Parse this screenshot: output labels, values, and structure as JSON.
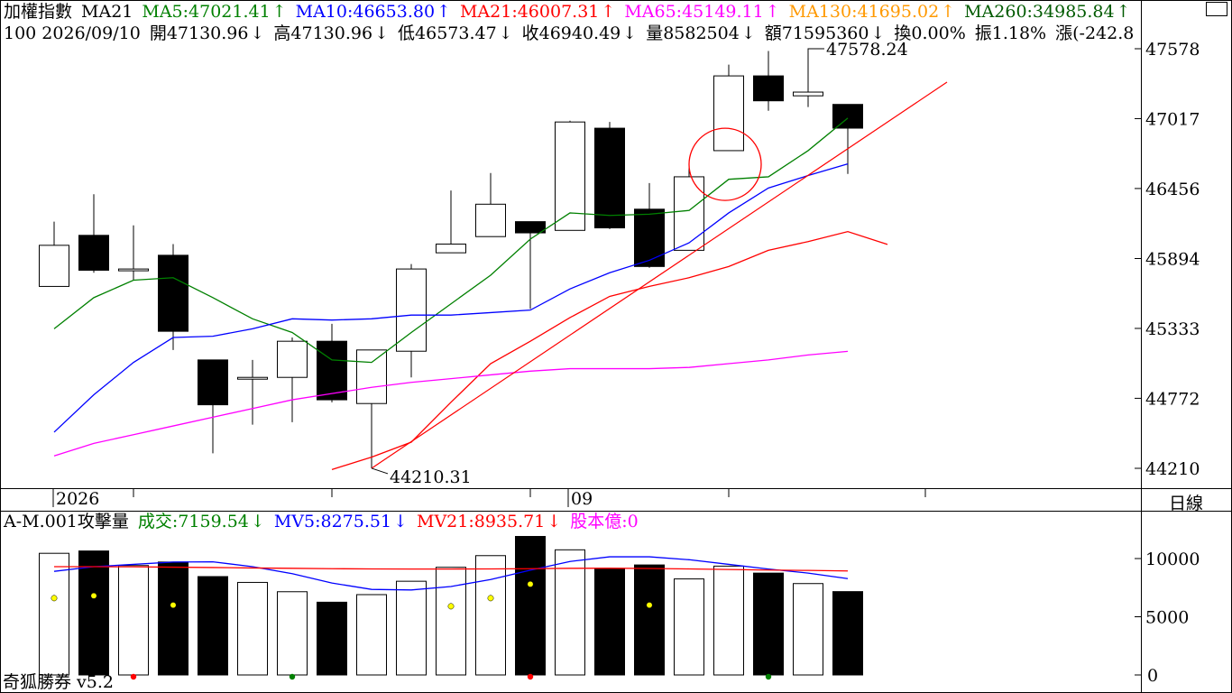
{
  "header1": {
    "title": "加權指數",
    "ma21_label": "MA21",
    "ma5": {
      "text": "MA5:47021.41",
      "arrow": "↑",
      "color": "#008000"
    },
    "ma10": {
      "text": "MA10:46653.80",
      "arrow": "↑",
      "color": "#0000ff"
    },
    "ma21": {
      "text": "MA21:46007.31",
      "arrow": "↑",
      "color": "#ff0000"
    },
    "ma65": {
      "text": "MA65:45149.11",
      "arrow": "↑",
      "color": "#ff00ff"
    },
    "ma130": {
      "text": "MA130:41695.02",
      "arrow": "↑",
      "color": "#ff9900"
    },
    "ma260": {
      "text": "MA260:34985.84",
      "arrow": "↑",
      "color": "#005a00"
    }
  },
  "header2": {
    "code_date": "100 2026/09/10",
    "open": "開47130.96",
    "open_arrow": "↓",
    "high": "高47130.96",
    "high_arrow": "↓",
    "low": "低46573.47",
    "low_arrow": "↓",
    "close": "收46940.49",
    "close_arrow": "↓",
    "volume": "量8582504",
    "volume_arrow": "↓",
    "amount": "額71595360",
    "amount_arrow": "↓",
    "turnover": "換0.00%",
    "amplitude": "振1.18%",
    "change": "漲(-242.8"
  },
  "volume_header": {
    "title": "A-M.001攻擊量",
    "trade": {
      "text": "成交:7159.54",
      "arrow": "↓",
      "color": "#008000"
    },
    "mv5": {
      "text": "MV5:8275.51",
      "arrow": "↓",
      "color": "#0000ff"
    },
    "mv21": {
      "text": "MV21:8935.71",
      "arrow": "↓",
      "color": "#ff0000"
    },
    "capital": {
      "text": "股本億:0",
      "color": "#ff00ff"
    }
  },
  "brand": "奇狐勝券 v5.2",
  "period_label": "日線",
  "chart_data": {
    "type": "candlestick",
    "price_axis": {
      "ticks": [
        47578,
        47017,
        46456,
        45894,
        45333,
        44772,
        44210
      ],
      "range": [
        44005,
        47960
      ]
    },
    "volume_axis": {
      "ticks": [
        10000,
        5000,
        0
      ],
      "range": [
        0,
        11800
      ]
    },
    "x_labels": [
      {
        "index": 0,
        "text": "2026"
      },
      {
        "index": 13,
        "text": "09"
      }
    ],
    "candles": [
      {
        "o": 45670,
        "h": 46190,
        "l": 45670,
        "c": 46000,
        "v": 10450
      },
      {
        "o": 46080,
        "h": 46410,
        "l": 45780,
        "c": 45800,
        "v": 10650
      },
      {
        "o": 45810,
        "h": 46160,
        "l": 45720,
        "c": 45810,
        "v": 9400
      },
      {
        "o": 45920,
        "h": 46010,
        "l": 45160,
        "c": 45310,
        "v": 9700
      },
      {
        "o": 45080,
        "h": 45080,
        "l": 44330,
        "c": 44720,
        "v": 8450
      },
      {
        "o": 44940,
        "h": 45080,
        "l": 44560,
        "c": 44940,
        "v": 7950
      },
      {
        "o": 44940,
        "h": 45260,
        "l": 44580,
        "c": 45230,
        "v": 7150
      },
      {
        "o": 45230,
        "h": 45370,
        "l": 44740,
        "c": 44760,
        "v": 6250
      },
      {
        "o": 44730,
        "h": 45160,
        "l": 44210,
        "c": 45160,
        "v": 6900
      },
      {
        "o": 45150,
        "h": 45850,
        "l": 44940,
        "c": 45810,
        "v": 8050
      },
      {
        "o": 45940,
        "h": 46440,
        "l": 45940,
        "c": 46010,
        "v": 9250
      },
      {
        "o": 46070,
        "h": 46580,
        "l": 46070,
        "c": 46330,
        "v": 10250
      },
      {
        "o": 46190,
        "h": 46190,
        "l": 45490,
        "c": 46100,
        "v": 11900
      },
      {
        "o": 46120,
        "h": 47000,
        "l": 46120,
        "c": 46990,
        "v": 10750
      },
      {
        "o": 46940,
        "h": 46990,
        "l": 46130,
        "c": 46140,
        "v": 9150
      },
      {
        "o": 46290,
        "h": 46500,
        "l": 45820,
        "c": 45830,
        "v": 9450
      },
      {
        "o": 45960,
        "h": 46630,
        "l": 45960,
        "c": 46550,
        "v": 8250
      },
      {
        "o": 46760,
        "h": 47450,
        "l": 46760,
        "c": 47360,
        "v": 9350
      },
      {
        "o": 47360,
        "h": 47560,
        "l": 47080,
        "c": 47160,
        "v": 8750
      },
      {
        "o": 47200,
        "h": 47578.24,
        "l": 47110,
        "c": 47230,
        "v": 7850
      },
      {
        "o": 47130.96,
        "h": 47130.96,
        "l": 46573.47,
        "c": 46940.49,
        "v": 7159.54
      }
    ],
    "annotations": [
      {
        "index": 19,
        "value": 47578.24,
        "text": "47578.24"
      },
      {
        "index": 8,
        "value": 44210.31,
        "text": "44210.31"
      }
    ],
    "series": [
      {
        "name": "MA5",
        "color": "#008000",
        "start": 0,
        "values": [
          45330,
          45580,
          45720,
          45740,
          45580,
          45410,
          45300,
          45080,
          45060,
          45300,
          45530,
          45760,
          46050,
          46260,
          46240,
          46250,
          46280,
          46530,
          46550,
          46760,
          47021.41
        ]
      },
      {
        "name": "MA10",
        "color": "#0000ff",
        "start": 0,
        "values": [
          44500,
          44800,
          45060,
          45260,
          45270,
          45330,
          45410,
          45400,
          45410,
          45440,
          45440,
          45460,
          45480,
          45650,
          45780,
          45880,
          46020,
          46260,
          46460,
          46560,
          46653.8
        ]
      },
      {
        "name": "MA21",
        "color": "#ff0000",
        "start": 7,
        "values": [
          44200,
          44300,
          44420,
          44740,
          45050,
          45230,
          45420,
          45590,
          45670,
          45740,
          45830,
          45960,
          46030,
          46110,
          46007.31
        ]
      },
      {
        "name": "MA65",
        "color": "#ff00ff",
        "start": 0,
        "values": [
          44310,
          44410,
          44480,
          44550,
          44620,
          44690,
          44760,
          44810,
          44860,
          44900,
          44930,
          44960,
          44990,
          45010,
          45010,
          45010,
          45020,
          45050,
          45080,
          45120,
          45149.11
        ]
      },
      {
        "name": "MV5",
        "color": "#0000ff",
        "start": 0,
        "values": [
          8900,
          9300,
          9500,
          9700,
          9720,
          9300,
          8700,
          7900,
          7350,
          7300,
          7600,
          8200,
          9000,
          9750,
          10150,
          10150,
          9900,
          9500,
          9100,
          8750,
          8275.51
        ]
      },
      {
        "name": "MV21",
        "color": "#ff0000",
        "start": 0,
        "values": [
          9300,
          9300,
          9290,
          9260,
          9230,
          9190,
          9160,
          9130,
          9110,
          9100,
          9100,
          9110,
          9130,
          9160,
          9170,
          9150,
          9110,
          9060,
          9010,
          8980,
          8935.71
        ]
      }
    ],
    "trend_line": {
      "from": {
        "index": 8,
        "value": 44210.31
      },
      "to": {
        "index": 22.5,
        "value": 47310
      },
      "color": "#ff0000"
    },
    "highlight_circle": {
      "index": 17,
      "value": 46650,
      "color": "#ff0000"
    },
    "vol_markers": [
      {
        "index": 0,
        "value": 6600,
        "color": "#ffff00"
      },
      {
        "index": 1,
        "value": 6800,
        "color": "#ffff00"
      },
      {
        "index": 3,
        "value": 6000,
        "color": "#ffff00"
      },
      {
        "index": 10,
        "value": 5900,
        "color": "#ffff00"
      },
      {
        "index": 11,
        "value": 6600,
        "color": "#ffff00"
      },
      {
        "index": 12,
        "value": 7800,
        "color": "#ffff00"
      },
      {
        "index": 15,
        "value": 6000,
        "color": "#ffff00"
      },
      {
        "index": 2,
        "value": -100,
        "color": "#ff0000"
      },
      {
        "index": 6,
        "value": -100,
        "color": "#008000"
      },
      {
        "index": 12,
        "value": -100,
        "color": "#ff0000"
      },
      {
        "index": 18,
        "value": -100,
        "color": "#008000"
      }
    ]
  }
}
